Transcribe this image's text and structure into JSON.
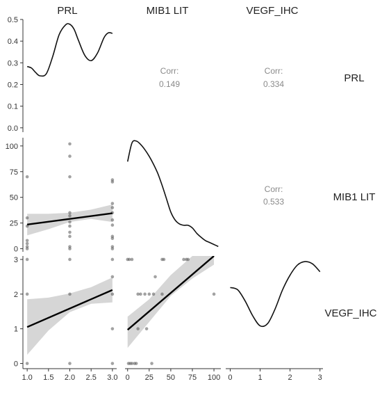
{
  "chart_data": {
    "type": "scatter",
    "variables": [
      "PRL",
      "MIB1 LIT",
      "VEGF_IHC"
    ],
    "column_titles": [
      "PRL",
      "MIB1 LIT",
      "VEGF_IHC"
    ],
    "row_titles": [
      "PRL",
      "MIB1 LIT",
      "VEGF_IHC"
    ],
    "corr_label": "Corr:",
    "correlations": [
      {
        "pair": [
          "PRL",
          "MIB1 LIT"
        ],
        "value": "0.149"
      },
      {
        "pair": [
          "PRL",
          "VEGF_IHC"
        ],
        "value": "0.334"
      },
      {
        "pair": [
          "MIB1 LIT",
          "VEGF_IHC"
        ],
        "value": "0.533"
      }
    ],
    "axes": {
      "prl": {
        "range": [
          0.9,
          3.1
        ],
        "ticks": [
          "1.0",
          "1.5",
          "2.0",
          "2.5",
          "3.0"
        ]
      },
      "mib1": {
        "range": [
          -3,
          108
        ],
        "ticks": [
          "0",
          "25",
          "50",
          "75",
          "100"
        ]
      },
      "vegf": {
        "range": [
          -0.15,
          3.1
        ],
        "ticks": [
          "0",
          "1",
          "2",
          "3"
        ]
      },
      "density": {
        "range": [
          -0.02,
          0.5
        ],
        "ticks": [
          "0.0",
          "0.1",
          "0.2",
          "0.3",
          "0.4",
          "0.5"
        ]
      }
    },
    "density_prl": {
      "x": [
        1.0,
        1.1,
        1.2,
        1.3,
        1.45,
        1.6,
        1.75,
        1.9,
        2.0,
        2.1,
        2.2,
        2.35,
        2.5,
        2.65,
        2.8,
        2.9,
        3.0
      ],
      "y": [
        0.283,
        0.276,
        0.255,
        0.24,
        0.25,
        0.33,
        0.43,
        0.475,
        0.478,
        0.455,
        0.405,
        0.335,
        0.31,
        0.345,
        0.415,
        0.438,
        0.436
      ]
    },
    "density_mib1": {
      "x": [
        0,
        5,
        10,
        15,
        20,
        25,
        30,
        35,
        40,
        45,
        50,
        55,
        60,
        65,
        70,
        75,
        80,
        85,
        90,
        95,
        100,
        105
      ],
      "y": [
        0.68,
        0.82,
        0.835,
        0.81,
        0.77,
        0.72,
        0.66,
        0.59,
        0.5,
        0.4,
        0.3,
        0.24,
        0.21,
        0.2,
        0.2,
        0.18,
        0.14,
        0.11,
        0.085,
        0.07,
        0.055,
        0.04
      ]
    },
    "density_vegf": {
      "x": [
        0,
        0.25,
        0.5,
        0.75,
        1.0,
        1.25,
        1.5,
        1.75,
        2.0,
        2.25,
        2.5,
        2.75,
        3.0
      ],
      "y": [
        0.72,
        0.7,
        0.6,
        0.47,
        0.38,
        0.4,
        0.53,
        0.7,
        0.83,
        0.92,
        0.95,
        0.93,
        0.86
      ]
    },
    "scatter_prl_mib1": {
      "points": [
        [
          1,
          70
        ],
        [
          1,
          30
        ],
        [
          1,
          22
        ],
        [
          1,
          8
        ],
        [
          1,
          5
        ],
        [
          1,
          2
        ],
        [
          1,
          0
        ],
        [
          2,
          102
        ],
        [
          2,
          90
        ],
        [
          2,
          70
        ],
        [
          2,
          35
        ],
        [
          2,
          32
        ],
        [
          2,
          26
        ],
        [
          2,
          22
        ],
        [
          2,
          16
        ],
        [
          2,
          12
        ],
        [
          2,
          2
        ],
        [
          2,
          0
        ],
        [
          3,
          67
        ],
        [
          3,
          65
        ],
        [
          3,
          44
        ],
        [
          3,
          40
        ],
        [
          3,
          35
        ],
        [
          3,
          28
        ],
        [
          3,
          23
        ],
        [
          3,
          12
        ],
        [
          3,
          10
        ],
        [
          3,
          2
        ],
        [
          3,
          0
        ]
      ],
      "fit": {
        "x": [
          1,
          3
        ],
        "y": [
          23.5,
          34.5
        ]
      },
      "ci_upper": [
        [
          1,
          34
        ],
        [
          1.5,
          34
        ],
        [
          2,
          35
        ],
        [
          2.5,
          38
        ],
        [
          3,
          43
        ]
      ],
      "ci_lower": [
        [
          1,
          13
        ],
        [
          1.5,
          19
        ],
        [
          2,
          26
        ],
        [
          2.5,
          29
        ],
        [
          3,
          26
        ]
      ]
    },
    "scatter_prl_vegf": {
      "points": [
        [
          1,
          3
        ],
        [
          1,
          2
        ],
        [
          1,
          0
        ],
        [
          2,
          3
        ],
        [
          2,
          2
        ],
        [
          2,
          0
        ],
        [
          3,
          3
        ],
        [
          3,
          2.5
        ],
        [
          3,
          2
        ],
        [
          3,
          1
        ],
        [
          3,
          0
        ]
      ],
      "fit": {
        "x": [
          1,
          3
        ],
        "y": [
          1.05,
          2.12
        ]
      },
      "ci_upper": [
        [
          1,
          1.85
        ],
        [
          1.5,
          1.9
        ],
        [
          2,
          2.02
        ],
        [
          2.5,
          2.2
        ],
        [
          3,
          2.48
        ]
      ],
      "ci_lower": [
        [
          1,
          0.25
        ],
        [
          1.5,
          0.95
        ],
        [
          2,
          1.48
        ],
        [
          2.5,
          1.72
        ],
        [
          3,
          1.76
        ]
      ]
    },
    "scatter_mib1_vegf": {
      "points": [
        [
          0,
          3
        ],
        [
          2,
          3
        ],
        [
          5,
          3
        ],
        [
          1,
          0
        ],
        [
          3,
          0
        ],
        [
          5,
          0
        ],
        [
          8,
          0
        ],
        [
          10,
          0
        ],
        [
          28,
          0
        ],
        [
          12,
          1
        ],
        [
          22,
          1
        ],
        [
          12,
          2
        ],
        [
          15,
          2
        ],
        [
          20,
          2
        ],
        [
          25,
          2
        ],
        [
          30,
          2
        ],
        [
          40,
          2
        ],
        [
          32,
          2.5
        ],
        [
          40,
          3
        ],
        [
          42,
          3
        ],
        [
          65,
          3
        ],
        [
          68,
          3
        ],
        [
          70,
          3
        ],
        [
          100,
          2
        ]
      ],
      "fit": {
        "x": [
          0,
          100
        ],
        "y": [
          0.97,
          3.1
        ]
      },
      "ci_upper": [
        [
          0,
          1.35
        ],
        [
          25,
          1.85
        ],
        [
          50,
          2.55
        ],
        [
          75,
          3.1
        ],
        [
          100,
          3.1
        ]
      ],
      "ci_lower": [
        [
          0,
          0.45
        ],
        [
          25,
          1.2
        ],
        [
          50,
          1.95
        ],
        [
          75,
          2.45
        ],
        [
          100,
          2.85
        ]
      ]
    }
  }
}
